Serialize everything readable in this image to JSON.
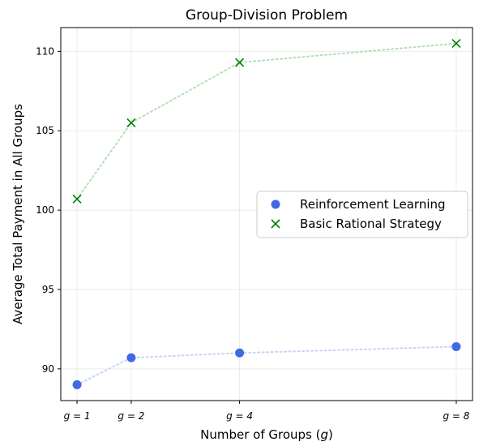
{
  "chart_data": {
    "type": "scatter",
    "title": "Group-Division Problem",
    "xlabel": "Number of Groups (g)",
    "ylabel": "Average Total Payment in All Groups",
    "x": [
      1,
      2,
      4,
      8
    ],
    "x_tick_labels": [
      "g = 1",
      "g = 2",
      "g = 4",
      "g = 8"
    ],
    "ylim": [
      88,
      111.5
    ],
    "y_ticks": [
      90,
      95,
      100,
      105,
      110
    ],
    "grid": true,
    "legend_position": "center-right",
    "series": [
      {
        "name": "Reinforcement Learning",
        "marker": "circle",
        "color": "#4169e1",
        "line_color": "#c9d3f7",
        "values": [
          89.0,
          90.7,
          91.0,
          91.4
        ]
      },
      {
        "name": "Basic Rational Strategy",
        "marker": "x",
        "color": "#008000",
        "line_color": "#b6deb6",
        "values": [
          100.7,
          105.5,
          109.3,
          110.5
        ]
      }
    ]
  }
}
